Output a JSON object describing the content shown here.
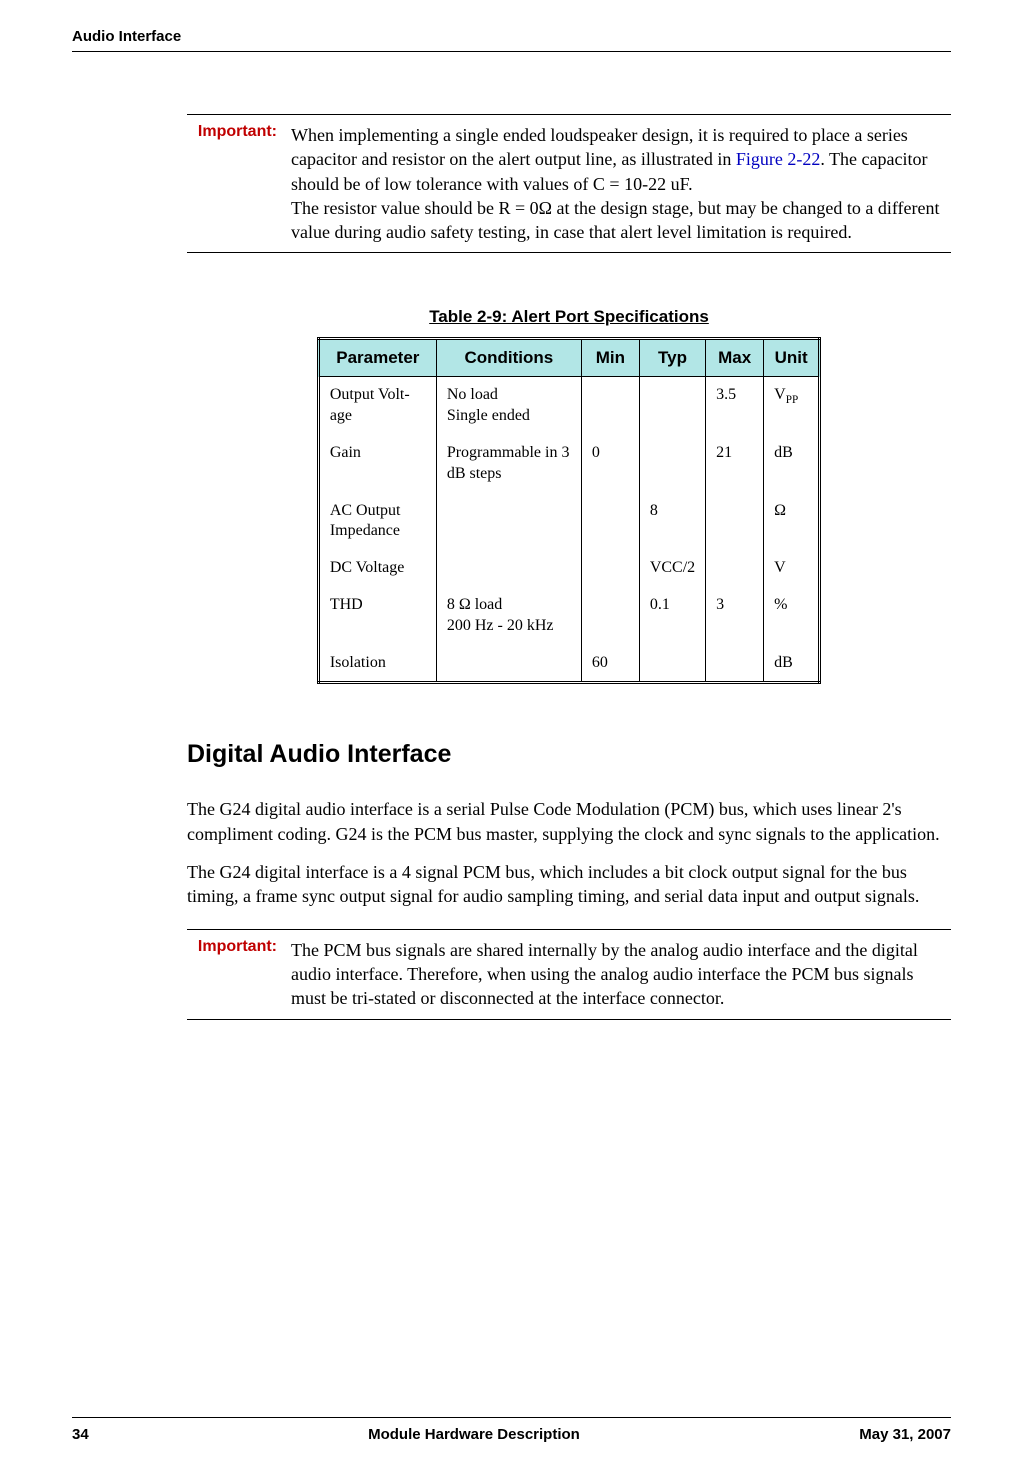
{
  "header": {
    "title": "Audio Interface"
  },
  "important_box_1": {
    "label": "Important:",
    "text_parts": {
      "p1": "When implementing a single ended loudspeaker design, it is required to place a series capacitor and resistor on the alert output line, as illustrated in ",
      "figref": "Figure 2-22",
      "p2": ". The capacitor should be of low tolerance with values of C = 10-22 uF.",
      "p3": "The resistor value should be R = 0Ω at the design stage, but may be changed to a different value during audio safety testing, in case that alert level limitation is required."
    }
  },
  "table": {
    "title": "Table 2-9: Alert Port Specifications",
    "headers": {
      "parameter": "Parameter",
      "conditions": "Conditions",
      "min": "Min",
      "typ": "Typ",
      "max": "Max",
      "unit": "Unit"
    },
    "header_bg": "#b2e6e6",
    "rows": [
      {
        "parameter": "Output Volt-age",
        "conditions": "No load\nSingle ended",
        "min": "",
        "typ": "",
        "max": "3.5",
        "unit": "V",
        "unit_sub": "PP"
      },
      {
        "parameter": "Gain",
        "conditions": "Programmable in 3 dB steps",
        "min": "0",
        "typ": "",
        "max": "21",
        "unit": "dB"
      },
      {
        "parameter": "AC Output Impedance",
        "conditions": "",
        "min": "",
        "typ": "8",
        "max": "",
        "unit": "Ω"
      },
      {
        "parameter": "DC Voltage",
        "conditions": "",
        "min": "",
        "typ": "VCC/2",
        "max": "",
        "unit": "V"
      },
      {
        "parameter": "THD",
        "conditions": "8 Ω load\n200 Hz - 20 kHz",
        "min": "",
        "typ": "0.1",
        "max": "3",
        "unit": "%"
      },
      {
        "parameter": "Isolation",
        "conditions": "",
        "min": "60",
        "typ": "",
        "max": "",
        "unit": "dB"
      }
    ]
  },
  "section_heading": "Digital Audio Interface",
  "para1": "The G24 digital audio interface is a serial Pulse Code Modulation (PCM) bus, which uses linear 2's compliment coding. G24 is the PCM bus master, supplying the clock and sync signals to the application.",
  "para2": "The G24 digital interface is a 4 signal PCM bus, which includes a bit clock output signal for the bus timing, a frame sync output signal for audio sampling timing, and serial data input and output signals.",
  "important_box_2": {
    "label": "Important:",
    "text": "The PCM bus signals are shared internally by the analog audio interface and the digital audio interface. Therefore, when using the analog audio interface the PCM bus signals must be tri-stated or disconnected at the interface connector."
  },
  "footer": {
    "page": "34",
    "center": "Module Hardware Description",
    "date": "May 31, 2007"
  },
  "colors": {
    "important_label": "#c00000",
    "link": "#0000c0",
    "background": "#ffffff"
  }
}
